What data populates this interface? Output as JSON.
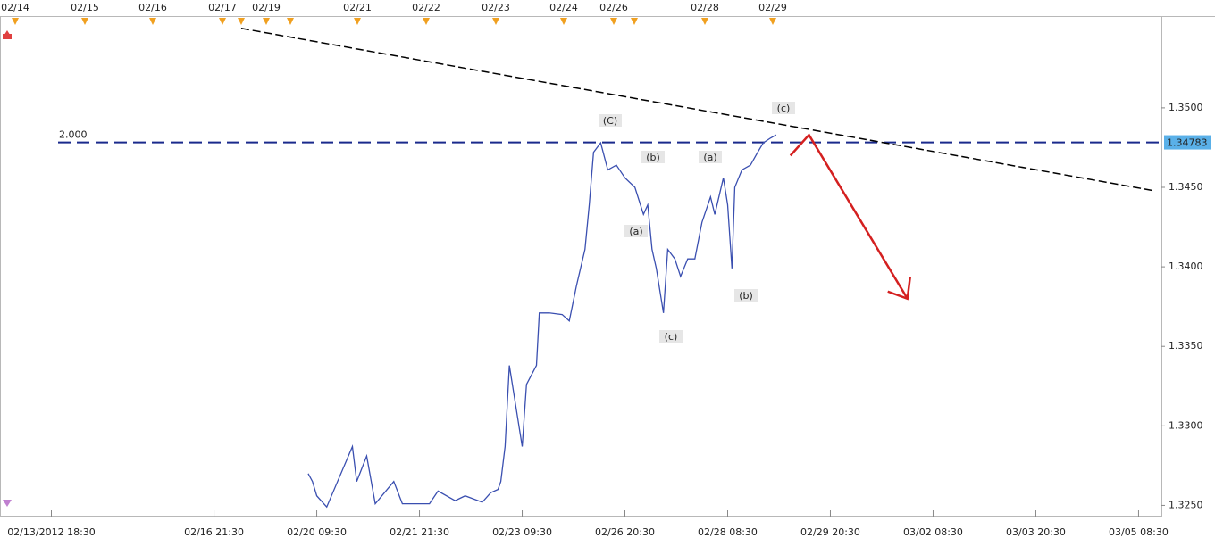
{
  "chart_data": {
    "type": "line",
    "x": [
      216,
      219,
      222,
      229,
      247,
      250,
      257,
      263,
      276,
      282,
      301,
      307,
      319,
      326,
      338,
      344,
      349,
      351,
      354,
      357,
      363,
      366,
      369,
      376,
      378,
      385,
      394,
      399,
      404,
      410,
      413,
      416,
      421,
      426,
      432,
      438,
      445,
      451,
      454,
      457,
      460,
      465,
      468,
      473,
      477,
      482,
      487,
      492,
      498,
      501,
      507,
      510,
      513,
      515,
      520,
      526,
      531,
      535,
      540,
      544
    ],
    "series": [
      {
        "color": "#3a4fb0",
        "values": [
          1.327,
          1.3265,
          1.3256,
          1.3249,
          1.3287,
          1.3265,
          1.3281,
          1.3251,
          1.3265,
          1.3251,
          1.3251,
          1.3259,
          1.3253,
          1.3256,
          1.3252,
          1.3258,
          1.326,
          1.3265,
          1.3287,
          1.3338,
          1.3304,
          1.3287,
          1.3326,
          1.3338,
          1.3371,
          1.3371,
          1.337,
          1.3366,
          1.3388,
          1.3411,
          1.3439,
          1.3472,
          1.3478,
          1.3461,
          1.3464,
          1.3456,
          1.345,
          1.3433,
          1.3439,
          1.3411,
          1.3399,
          1.3371,
          1.3411,
          1.3405,
          1.3394,
          1.3405,
          1.3405,
          1.3428,
          1.3444,
          1.3433,
          1.3456,
          1.3439,
          1.3399,
          1.345,
          1.3461,
          1.3464,
          1.3472,
          1.3478,
          1.3481,
          1.3483
        ]
      }
    ],
    "xlim": [
      0,
      814
    ],
    "xticks": [
      {
        "value": 36,
        "label": "02/13/2012 18:30"
      },
      {
        "value": 150,
        "label": "02/16 21:30"
      },
      {
        "value": 222,
        "label": "02/20 09:30"
      },
      {
        "value": 294,
        "label": "02/21 21:30"
      },
      {
        "value": 366,
        "label": "02/23 09:30"
      },
      {
        "value": 438,
        "label": "02/26 20:30"
      },
      {
        "value": 510,
        "label": "02/28 08:30"
      },
      {
        "value": 582,
        "label": "02/29 20:30"
      },
      {
        "value": 654,
        "label": "03/02 08:30"
      },
      {
        "value": 726,
        "label": "03/03 20:30"
      },
      {
        "value": 798,
        "label": "03/05 08:30"
      }
    ],
    "ylim": [
      1.3248,
      1.3551
    ],
    "yticks": [
      {
        "value": 1.325,
        "label": "1.3250"
      },
      {
        "value": 1.33,
        "label": "1.3300"
      },
      {
        "value": 1.335,
        "label": "1.3350"
      },
      {
        "value": 1.34,
        "label": "1.3400"
      },
      {
        "value": 1.345,
        "label": "1.3450"
      },
      {
        "value": 1.35,
        "label": "1.3500"
      }
    ],
    "top_markers": [
      "02/14",
      "02/15",
      "02/16",
      "02/17",
      "02/19",
      "02/21",
      "02/22",
      "02/23",
      "02/24",
      "02/26",
      "02/28",
      "02/29"
    ],
    "level": {
      "name": "2.000",
      "value": 1.34783,
      "color": "#1a2a8c"
    },
    "trendline": {
      "x": [
        169,
        808
      ],
      "y": [
        1.355,
        1.3448
      ],
      "color": "#000000"
    },
    "projection": {
      "x": [
        554,
        567,
        636
      ],
      "y": [
        1.347,
        1.3483,
        1.338
      ],
      "color": "#d42020"
    },
    "annotations": [
      "(C)",
      "(b)",
      "(a)",
      "(c)",
      "(a)",
      "(b)",
      "(c)"
    ]
  }
}
